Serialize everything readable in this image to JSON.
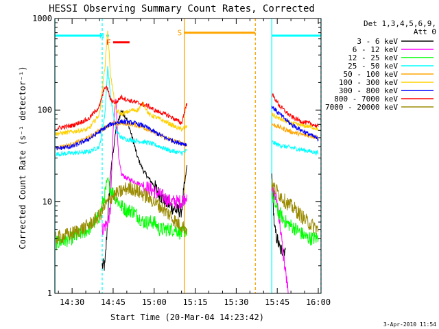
{
  "chart_data": {
    "type": "line",
    "title": "HESSI Observing Summary Count Rates, Corrected",
    "xlabel": "Start Time (20-Mar-04 14:23:42)",
    "ylabel": "Corrected Count Rate (s⁻¹ detector⁻¹)",
    "y_scale": "log",
    "ylim": [
      1,
      1000
    ],
    "xlim": [
      "14:23:42",
      "16:01:00"
    ],
    "x_ticks": [
      "14:30",
      "14:45",
      "15:00",
      "15:15",
      "15:30",
      "15:45",
      "16:00"
    ],
    "y_ticks": [
      "1",
      "10",
      "100",
      "1000"
    ],
    "legend_position": "right",
    "legend_header": [
      "Det 1,3,4,5,6,9,",
      "Att 0"
    ],
    "series": [
      {
        "name": "3 - 6 keV",
        "color": "#000000",
        "x": [
          "14:41",
          "14:42",
          "14:44",
          "14:46",
          "14:48",
          "14:50",
          "14:52",
          "14:54",
          "14:56",
          "14:58",
          "15:00",
          "15:02",
          "15:04",
          "15:06",
          "15:08",
          "15:10",
          "15:12",
          "15:43",
          "15:44",
          "15:46",
          "15:48"
        ],
        "y": [
          2,
          2,
          20,
          60,
          100,
          80,
          50,
          30,
          22,
          18,
          15,
          12,
          10,
          9,
          8,
          8,
          25,
          20,
          5,
          3,
          3
        ]
      },
      {
        "name": "6 - 12 keV",
        "color": "#ff00ff",
        "x": [
          "14:41",
          "14:43",
          "14:44",
          "14:45",
          "14:46",
          "14:47",
          "14:48",
          "14:50",
          "14:52",
          "14:54",
          "14:56",
          "14:58",
          "15:00",
          "15:02",
          "15:04",
          "15:06",
          "15:08",
          "15:10",
          "15:12",
          "15:43",
          "15:45",
          "15:47",
          "15:49"
        ],
        "y": [
          5,
          6,
          8,
          60,
          140,
          30,
          20,
          18,
          17,
          16,
          15,
          14,
          13,
          12,
          11,
          10,
          10,
          10,
          12,
          14,
          10,
          3,
          1
        ]
      },
      {
        "name": "12 - 25 keV",
        "color": "#00ff00",
        "x": [
          "14:24",
          "14:30",
          "14:36",
          "14:40",
          "14:42",
          "14:43",
          "14:44",
          "14:46",
          "14:48",
          "14:50",
          "14:52",
          "14:54",
          "14:56",
          "14:58",
          "15:00",
          "15:02",
          "15:04",
          "15:06",
          "15:08",
          "15:10",
          "15:12",
          "15:43",
          "15:45",
          "15:48",
          "15:52",
          "15:56",
          "16:00"
        ],
        "y": [
          3.5,
          4,
          5,
          7,
          12,
          18,
          14,
          11,
          9,
          8,
          8,
          7,
          6,
          6,
          6,
          5,
          5,
          5,
          5,
          4.5,
          5,
          12,
          8,
          6,
          5,
          4,
          4
        ]
      },
      {
        "name": "25 - 50 keV",
        "color": "#00ffff",
        "x": [
          "14:24",
          "14:30",
          "14:36",
          "14:40",
          "14:42",
          "14:43",
          "14:44",
          "14:46",
          "14:48",
          "14:50",
          "14:52",
          "14:54",
          "14:56",
          "14:58",
          "15:00",
          "15:02",
          "15:04",
          "15:06",
          "15:08",
          "15:10",
          "15:12",
          "15:43",
          "15:45",
          "15:48",
          "15:52",
          "15:56",
          "16:00"
        ],
        "y": [
          33,
          34,
          35,
          40,
          90,
          300,
          150,
          60,
          50,
          48,
          47,
          46,
          45,
          44,
          42,
          40,
          38,
          36,
          35,
          34,
          36,
          45,
          42,
          40,
          38,
          36,
          34
        ]
      },
      {
        "name": "50 - 100 keV",
        "color": "#ffa500",
        "x": [
          "14:24",
          "14:30",
          "14:36",
          "14:40",
          "14:44",
          "14:48",
          "14:52",
          "14:56",
          "15:00",
          "15:04",
          "15:08",
          "15:12",
          "15:43",
          "15:46",
          "15:50",
          "15:54",
          "15:58",
          "16:00"
        ],
        "y": [
          39,
          42,
          50,
          60,
          70,
          72,
          70,
          65,
          57,
          50,
          45,
          42,
          70,
          65,
          58,
          54,
          52,
          50
        ]
      },
      {
        "name": "100 - 300 keV",
        "color": "#ffd000",
        "x": [
          "14:24",
          "14:30",
          "14:36",
          "14:40",
          "14:42",
          "14:43",
          "14:44",
          "14:46",
          "14:48",
          "14:50",
          "14:52",
          "14:54",
          "14:56",
          "14:58",
          "15:00",
          "15:02",
          "15:04",
          "15:06",
          "15:08",
          "15:10",
          "15:12",
          "15:43",
          "15:46",
          "15:50",
          "15:54",
          "15:58",
          "16:00"
        ],
        "y": [
          55,
          58,
          62,
          90,
          300,
          750,
          250,
          100,
          90,
          95,
          100,
          100,
          120,
          90,
          85,
          80,
          75,
          70,
          65,
          62,
          66,
          90,
          80,
          72,
          68,
          65,
          62
        ]
      },
      {
        "name": "300 - 800 keV",
        "color": "#0000ff",
        "x": [
          "14:24",
          "14:30",
          "14:36",
          "14:40",
          "14:44",
          "14:48",
          "14:52",
          "14:56",
          "15:00",
          "15:04",
          "15:08",
          "15:12",
          "15:43",
          "15:46",
          "15:50",
          "15:54",
          "15:58",
          "16:00"
        ],
        "y": [
          38,
          40,
          48,
          58,
          70,
          75,
          73,
          68,
          58,
          50,
          45,
          42,
          110,
          90,
          70,
          60,
          52,
          48
        ]
      },
      {
        "name": "800 - 7000 keV",
        "color": "#ff0000",
        "x": [
          "14:24",
          "14:30",
          "14:36",
          "14:40",
          "14:42",
          "14:43",
          "14:44",
          "14:46",
          "14:48",
          "14:50",
          "14:52",
          "14:54",
          "14:56",
          "14:58",
          "15:00",
          "15:02",
          "15:04",
          "15:06",
          "15:08",
          "15:10",
          "15:12",
          "15:43",
          "15:46",
          "15:50",
          "15:54",
          "15:58",
          "16:00"
        ],
        "y": [
          63,
          68,
          80,
          110,
          180,
          170,
          130,
          120,
          140,
          130,
          125,
          120,
          115,
          110,
          100,
          95,
          90,
          85,
          78,
          72,
          120,
          150,
          110,
          85,
          75,
          70,
          66
        ]
      },
      {
        "name": "7000 - 20000 keV",
        "color": "#9a8a00",
        "x": [
          "14:24",
          "14:30",
          "14:36",
          "14:40",
          "14:42",
          "14:44",
          "14:46",
          "14:48",
          "14:50",
          "14:52",
          "14:54",
          "14:56",
          "14:58",
          "15:00",
          "15:02",
          "15:04",
          "15:06",
          "15:08",
          "15:10",
          "15:12",
          "15:43",
          "15:45",
          "15:48",
          "15:52",
          "15:56",
          "16:00"
        ],
        "y": [
          4,
          4.5,
          5.5,
          7,
          9,
          11,
          12,
          13,
          14,
          14,
          13,
          12,
          11,
          10,
          9,
          8,
          7,
          6,
          5.5,
          5,
          15,
          13,
          10,
          8,
          6,
          5
        ]
      }
    ],
    "annotations": {
      "status_bars": [
        {
          "label": "",
          "color": "#00ffff",
          "y": 650,
          "x": [
            "14:23:42",
            "14:41:00"
          ]
        },
        {
          "label": "N",
          "color": "#00ffff",
          "y": 650,
          "x": [
            "14:42:30",
            "14:43:30"
          ]
        },
        {
          "label": "F",
          "color": "#ff0000",
          "y": 550,
          "x": [
            "14:45:00",
            "14:51:00"
          ]
        },
        {
          "label": "S",
          "color": "#ffa500",
          "y": 700,
          "x": [
            "15:11:00",
            "15:37:00"
          ]
        },
        {
          "label": "",
          "color": "#00ffff",
          "y": 650,
          "x": [
            "15:43:00",
            "16:01:00"
          ]
        }
      ],
      "vlines": [
        {
          "x": "14:23:42",
          "color": "#00ffff",
          "style": "solid"
        },
        {
          "x": "14:41:00",
          "color": "#00ffff",
          "style": "dashed"
        },
        {
          "x": "15:11:00",
          "color": "#ffa500",
          "style": "solid"
        },
        {
          "x": "15:37:00",
          "color": "#ffa500",
          "style": "dashed"
        },
        {
          "x": "15:43:00",
          "color": "#00ffff",
          "style": "solid"
        },
        {
          "x": "16:01:00",
          "color": "#00ffff",
          "style": "dashed"
        }
      ]
    }
  },
  "timestamp": "3-Apr-2010 11:54"
}
